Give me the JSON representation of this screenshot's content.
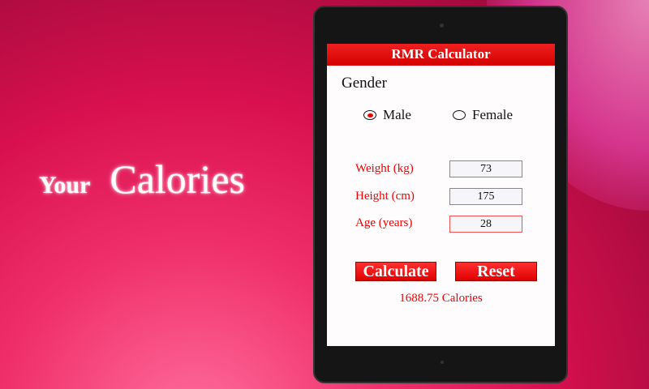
{
  "tagline": {
    "your": "Your",
    "calories": "Calories"
  },
  "app": {
    "title": "RMR Calculator",
    "gender_label": "Gender",
    "gender_options": [
      {
        "label": "Male",
        "selected": true
      },
      {
        "label": "Female",
        "selected": false
      }
    ],
    "fields": [
      {
        "label": "Weight (kg)",
        "value": "73"
      },
      {
        "label": "Height (cm)",
        "value": "175"
      },
      {
        "label": "Age (years)",
        "value": "28"
      }
    ],
    "calculate_label": "Calculate",
    "reset_label": "Reset",
    "result": "1688.75 Calories"
  },
  "colors": {
    "accent": "#e00000",
    "background": "#e0105a"
  }
}
